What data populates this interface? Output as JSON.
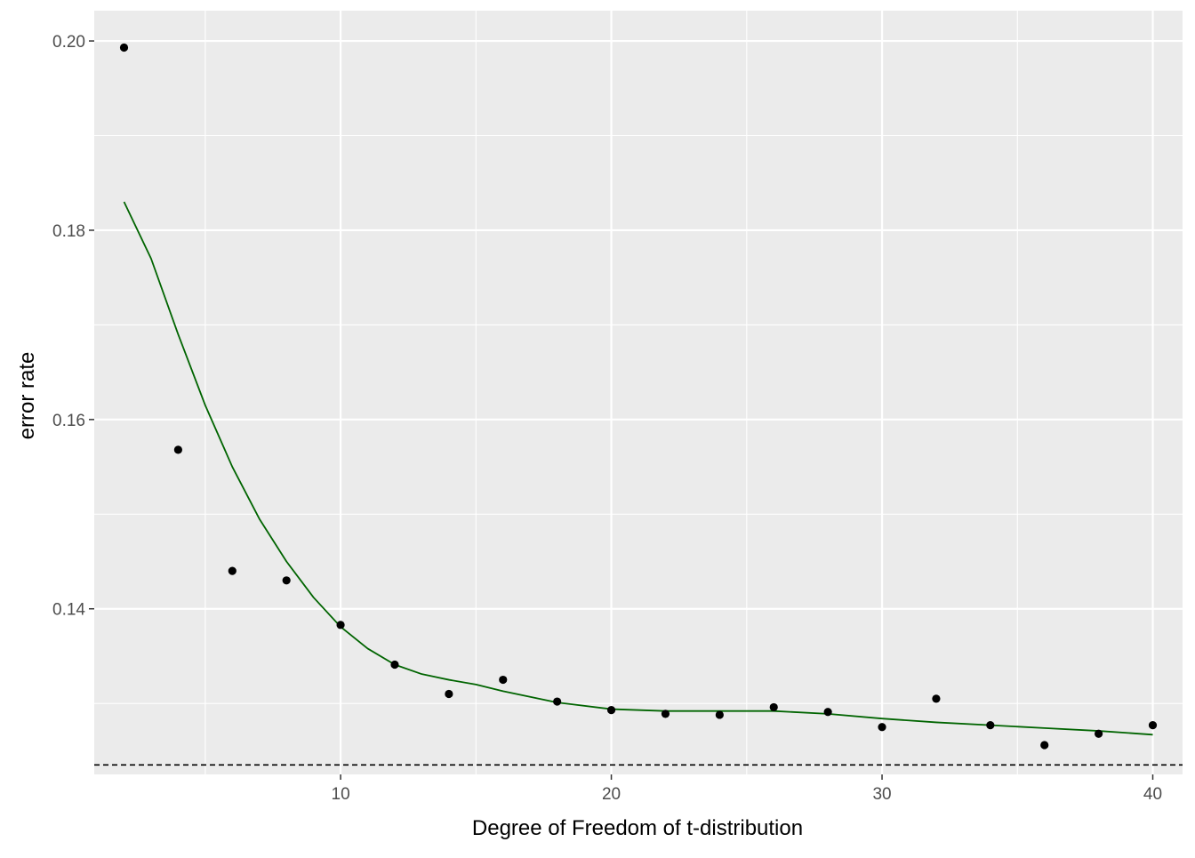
{
  "chart_data": {
    "type": "scatter",
    "title": "",
    "xlabel": "Degree of Freedom of t-distribution",
    "ylabel": "error rate",
    "xlim": [
      0.9,
      41.1
    ],
    "ylim": [
      0.1225,
      0.2032
    ],
    "x_ticks": [
      10,
      20,
      30,
      40
    ],
    "x_tick_labels": [
      "10",
      "20",
      "30",
      "40"
    ],
    "x_minor_ticks": [
      5,
      15,
      25,
      35
    ],
    "y_ticks": [
      0.14,
      0.16,
      0.18,
      0.2
    ],
    "y_tick_labels": [
      "0.14",
      "0.16",
      "0.18",
      "0.20"
    ],
    "y_minor_ticks": [
      0.13,
      0.15,
      0.17,
      0.19
    ],
    "grid": true,
    "legend": "none",
    "points": {
      "x": [
        2,
        4,
        6,
        8,
        10,
        12,
        14,
        16,
        18,
        20,
        22,
        24,
        26,
        28,
        30,
        32,
        34,
        36,
        38,
        40
      ],
      "y": [
        0.1993,
        0.1568,
        0.144,
        0.143,
        0.1383,
        0.1341,
        0.131,
        0.1325,
        0.1302,
        0.1293,
        0.1289,
        0.1288,
        0.1296,
        0.1291,
        0.1275,
        0.1305,
        0.1277,
        0.1256,
        0.1268,
        0.1277
      ],
      "color": "#000000"
    },
    "smooth": {
      "x": [
        2,
        3,
        4,
        5,
        6,
        7,
        8,
        9,
        10,
        11,
        12,
        13,
        14,
        15,
        16,
        18,
        20,
        22,
        24,
        26,
        28,
        30,
        32,
        34,
        36,
        38,
        40
      ],
      "y": [
        0.183,
        0.177,
        0.169,
        0.1615,
        0.155,
        0.1495,
        0.145,
        0.1412,
        0.1381,
        0.1358,
        0.1341,
        0.1331,
        0.1325,
        0.132,
        0.1313,
        0.1301,
        0.1294,
        0.1292,
        0.1292,
        0.1292,
        0.1289,
        0.1284,
        0.128,
        0.1277,
        0.1274,
        0.1271,
        0.1267
      ],
      "color": "#006400"
    },
    "reference_line": {
      "y": 0.1235,
      "style": "dashed",
      "color": "#000000"
    },
    "panel_background": "#ebebeb",
    "grid_color": "#ffffff"
  }
}
